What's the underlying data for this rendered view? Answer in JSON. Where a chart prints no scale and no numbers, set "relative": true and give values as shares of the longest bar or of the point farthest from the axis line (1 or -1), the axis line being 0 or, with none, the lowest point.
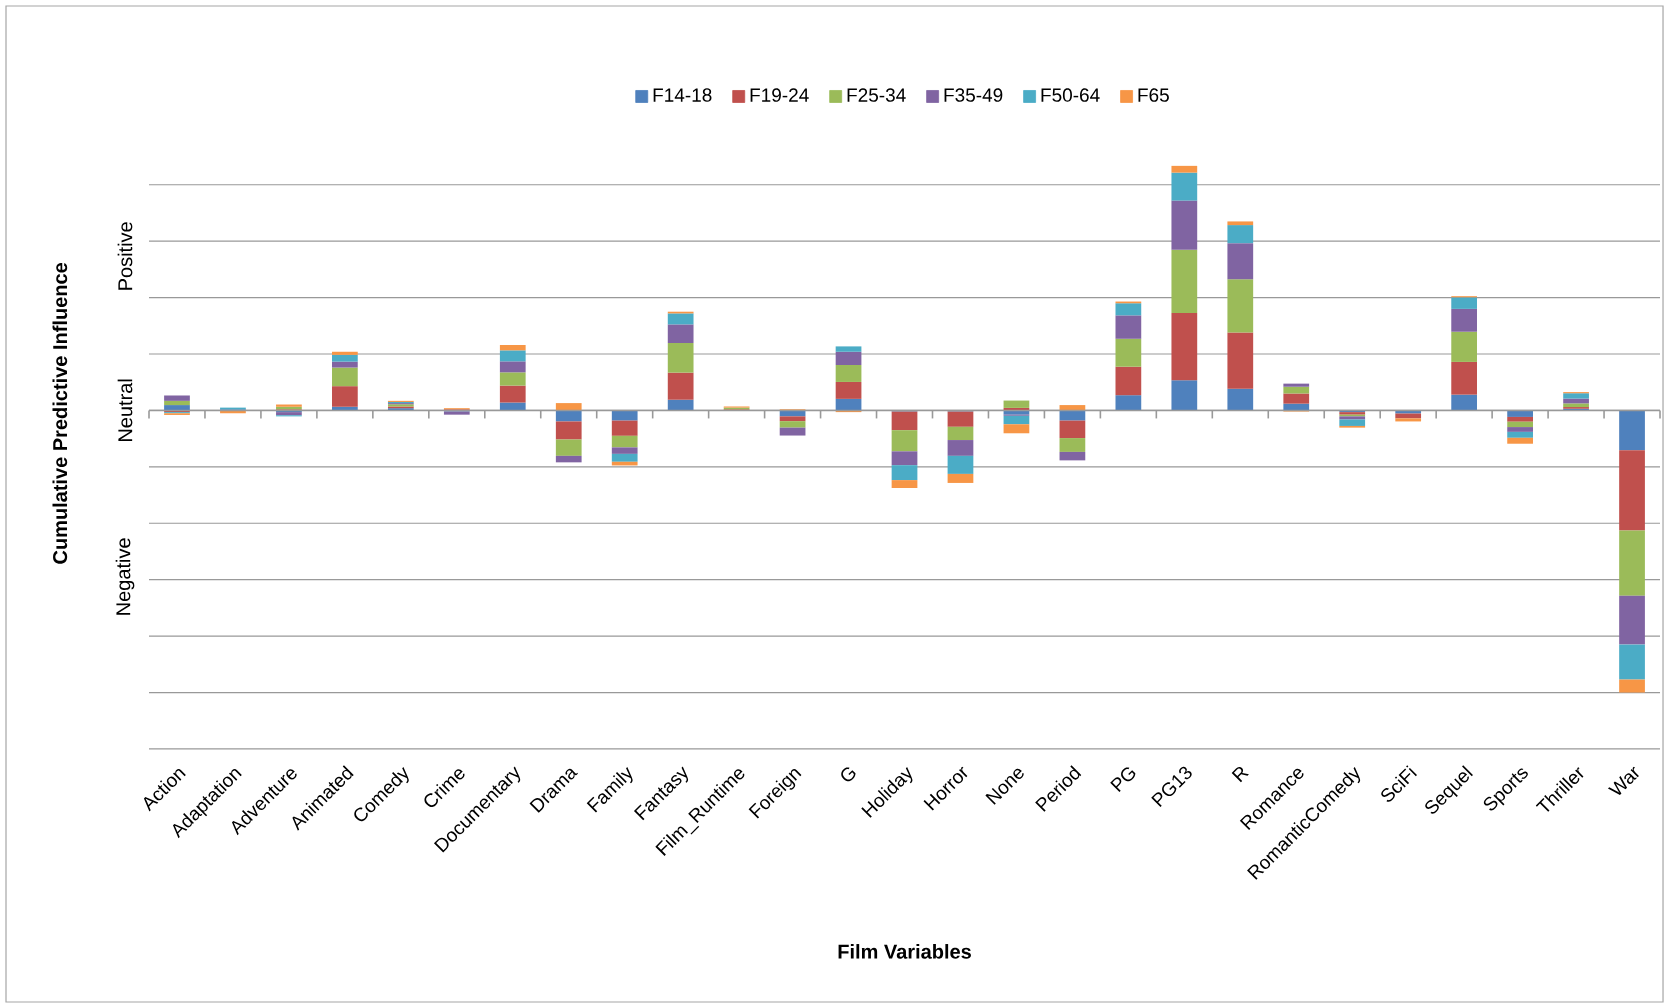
{
  "chart_data": {
    "type": "bar",
    "stacked": true,
    "relative": true,
    "grid": "y",
    "legend": "top",
    "xlabel": "Film Variables",
    "ylabel": "Cumulative Predictive Influence",
    "annotations": [
      "Positive",
      "Neutral",
      "Negative"
    ],
    "categories": [
      "Action",
      "Adaptation",
      "Adventure",
      "Animated",
      "Comedy",
      "Crime",
      "Documentary",
      "Drama",
      "Family",
      "Fantasy",
      "Film_Runtime",
      "Foreign",
      "G",
      "Holiday",
      "Horror",
      "None",
      "Period",
      "PG",
      "PG13",
      "R",
      "Romance",
      "RomanticComedy",
      "SciFi",
      "Sequel",
      "Sports",
      "Thriller",
      "War"
    ],
    "series": [
      {
        "name": "F14-18",
        "color": "#4f81bd",
        "values": [
          0.019,
          0.004,
          -0.006,
          0.013,
          0.008,
          -0.004,
          0.028,
          -0.039,
          -0.036,
          0.038,
          0,
          -0.021,
          0.041,
          -0.004,
          -0.004,
          -0.015,
          -0.036,
          0.054,
          0.107,
          0.077,
          0.024,
          -0.006,
          -0.011,
          0.056,
          -0.023,
          0.006,
          -0.141
        ]
      },
      {
        "name": "F19-24",
        "color": "#c0504d",
        "values": [
          -0.006,
          -0.002,
          0.004,
          0.073,
          0.006,
          0.004,
          0.06,
          -0.064,
          -0.054,
          0.096,
          0.004,
          -0.017,
          0.06,
          -0.066,
          -0.054,
          0.009,
          -0.062,
          0.101,
          0.238,
          0.199,
          0.036,
          -0.009,
          -0.017,
          0.116,
          -0.017,
          0.006,
          -0.285
        ]
      },
      {
        "name": "F25-34",
        "color": "#9bbb59",
        "values": [
          0.015,
          0,
          0.009,
          0.066,
          0.008,
          0,
          0.047,
          -0.058,
          -0.041,
          0.105,
          0.006,
          -0.023,
          0.06,
          -0.075,
          -0.047,
          0.026,
          -0.049,
          0.099,
          0.225,
          0.189,
          0.024,
          -0.006,
          0,
          0.107,
          -0.019,
          0.013,
          -0.231
        ]
      },
      {
        "name": "F35-49",
        "color": "#8064a2",
        "values": [
          0.019,
          0,
          -0.011,
          0.021,
          0.004,
          -0.011,
          0.039,
          -0.023,
          -0.023,
          0.066,
          0,
          -0.028,
          0.047,
          -0.049,
          -0.056,
          -0.004,
          -0.03,
          0.083,
          0.174,
          0.128,
          0.011,
          -0.011,
          0,
          0.081,
          -0.017,
          0.017,
          -0.173
        ]
      },
      {
        "name": "F50-64",
        "color": "#4bacc6",
        "values": [
          -0.004,
          0.006,
          -0.004,
          0.024,
          0.004,
          0,
          0.039,
          0,
          -0.028,
          0.039,
          0,
          0,
          0.019,
          -0.053,
          -0.064,
          -0.03,
          0,
          0.043,
          0.099,
          0.064,
          0,
          -0.023,
          0,
          0.041,
          -0.021,
          0.019,
          -0.124
        ]
      },
      {
        "name": "F65",
        "color": "#f79646",
        "values": [
          -0.006,
          -0.008,
          0.008,
          0.011,
          0.004,
          0.004,
          0.019,
          0.026,
          -0.013,
          0.006,
          0.004,
          0.004,
          -0.006,
          -0.028,
          -0.032,
          -0.032,
          0.019,
          0.006,
          0.024,
          0.013,
          -0.004,
          -0.006,
          -0.011,
          0.004,
          -0.021,
          0.004,
          -0.046
        ]
      }
    ]
  }
}
